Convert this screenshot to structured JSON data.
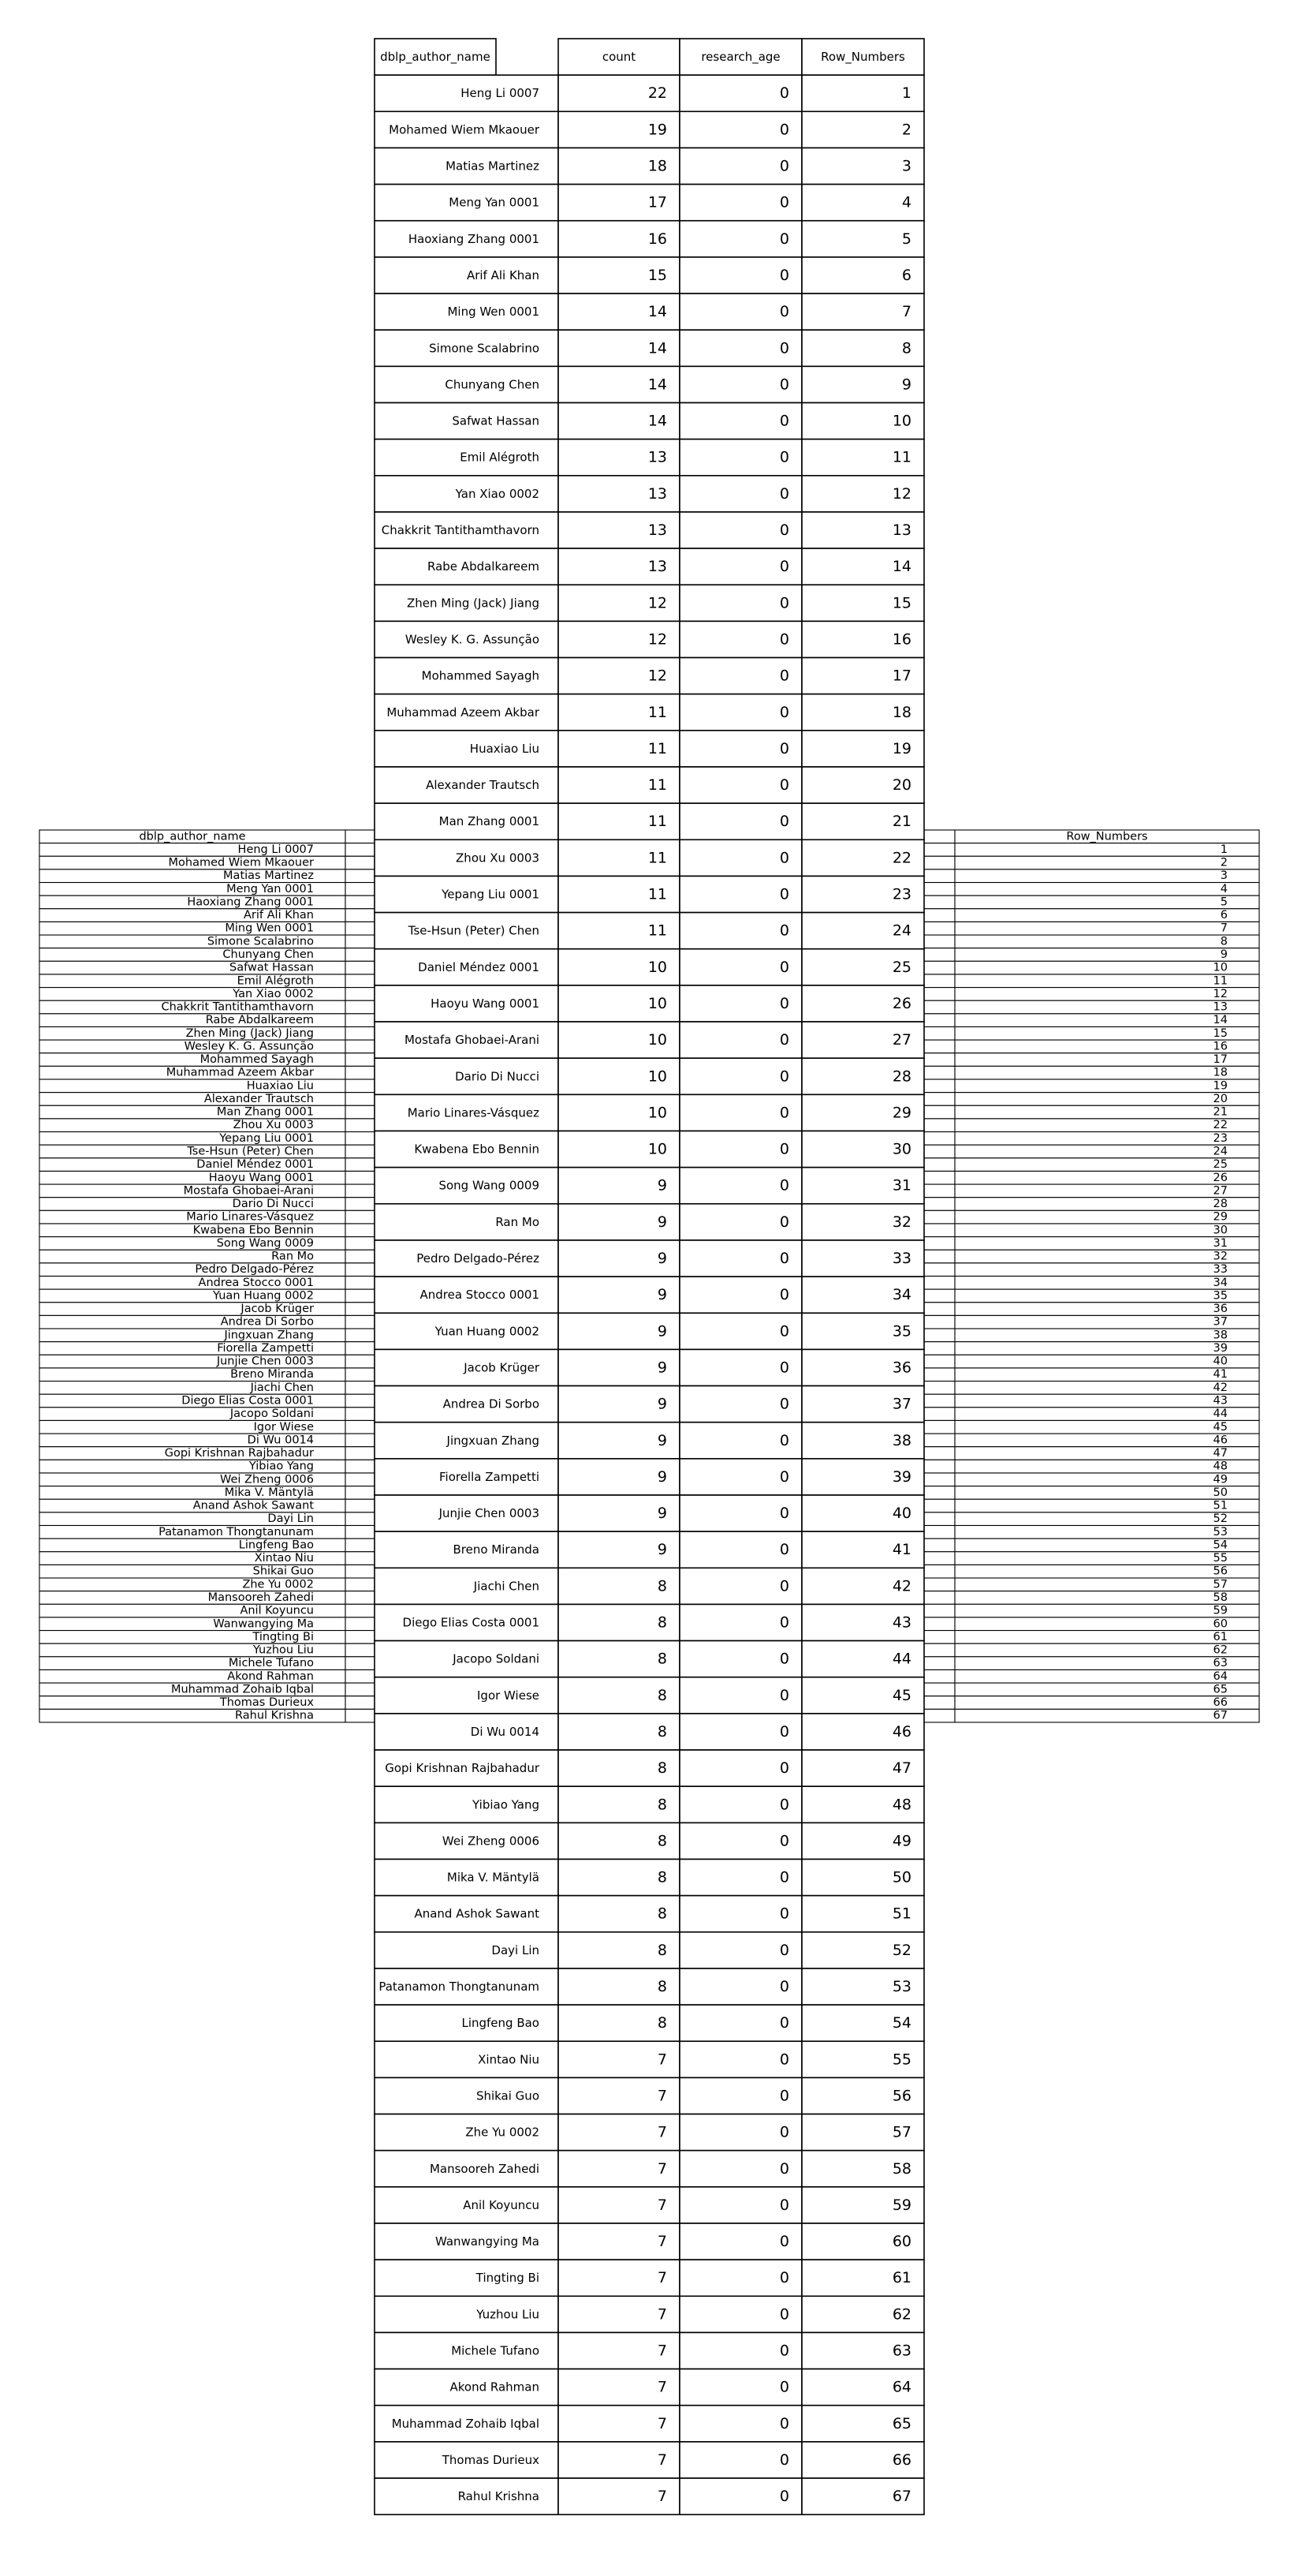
{
  "chart_data": [
    {
      "type": "table",
      "columns": [
        "dblp_author_name",
        "count",
        "research_age",
        "Row_Numbers"
      ],
      "rows": [
        [
          "Heng Li 0007",
          22,
          0,
          1
        ],
        [
          "Mohamed Wiem Mkaouer",
          19,
          0,
          2
        ],
        [
          "Matias Martinez",
          18,
          0,
          3
        ],
        [
          "Meng Yan 0001",
          17,
          0,
          4
        ],
        [
          "Haoxiang Zhang 0001",
          16,
          0,
          5
        ],
        [
          "Arif Ali Khan",
          15,
          0,
          6
        ],
        [
          "Ming Wen 0001",
          14,
          0,
          7
        ],
        [
          "Simone Scalabrino",
          14,
          0,
          8
        ],
        [
          "Chunyang Chen",
          14,
          0,
          9
        ],
        [
          "Safwat Hassan",
          14,
          0,
          10
        ],
        [
          "Emil Alégroth",
          13,
          0,
          11
        ],
        [
          "Yan Xiao 0002",
          13,
          0,
          12
        ],
        [
          "Chakkrit Tantithamthavorn",
          13,
          0,
          13
        ],
        [
          "Rabe Abdalkareem",
          13,
          0,
          14
        ],
        [
          "Zhen Ming (Jack) Jiang",
          12,
          0,
          15
        ],
        [
          "Wesley K. G. Assunção",
          12,
          0,
          16
        ],
        [
          "Mohammed Sayagh",
          12,
          0,
          17
        ],
        [
          "Muhammad Azeem Akbar",
          11,
          0,
          18
        ],
        [
          "Huaxiao Liu",
          11,
          0,
          19
        ],
        [
          "Alexander Trautsch",
          11,
          0,
          20
        ],
        [
          "Man Zhang 0001",
          11,
          0,
          21
        ],
        [
          "Zhou Xu 0003",
          11,
          0,
          22
        ],
        [
          "Yepang Liu 0001",
          11,
          0,
          23
        ],
        [
          "Tse-Hsun (Peter) Chen",
          11,
          0,
          24
        ],
        [
          "Daniel Méndez 0001",
          10,
          0,
          25
        ],
        [
          "Haoyu Wang 0001",
          10,
          0,
          26
        ],
        [
          "Mostafa Ghobaei-Arani",
          10,
          0,
          27
        ],
        [
          "Dario Di Nucci",
          10,
          0,
          28
        ],
        [
          "Mario Linares-Vásquez",
          10,
          0,
          29
        ],
        [
          "Kwabena Ebo Bennin",
          10,
          0,
          30
        ],
        [
          "Song Wang 0009",
          9,
          0,
          31
        ],
        [
          "Ran Mo",
          9,
          0,
          32
        ],
        [
          "Pedro Delgado-Pérez",
          9,
          0,
          33
        ],
        [
          "Andrea Stocco 0001",
          9,
          0,
          34
        ],
        [
          "Yuan Huang 0002",
          9,
          0,
          35
        ],
        [
          "Jacob Krüger",
          9,
          0,
          36
        ],
        [
          "Andrea Di Sorbo",
          9,
          0,
          37
        ],
        [
          "Jingxuan Zhang",
          9,
          0,
          38
        ],
        [
          "Fiorella Zampetti",
          9,
          0,
          39
        ],
        [
          "Junjie Chen 0003",
          9,
          0,
          40
        ],
        [
          "Breno Miranda",
          9,
          0,
          41
        ],
        [
          "Jiachi Chen",
          8,
          0,
          42
        ],
        [
          "Diego Elias Costa 0001",
          8,
          0,
          43
        ],
        [
          "Jacopo Soldani",
          8,
          0,
          44
        ],
        [
          "Igor Wiese",
          8,
          0,
          45
        ],
        [
          "Di Wu 0014",
          8,
          0,
          46
        ],
        [
          "Gopi Krishnan Rajbahadur",
          8,
          0,
          47
        ],
        [
          "Yibiao Yang",
          8,
          0,
          48
        ],
        [
          "Wei Zheng 0006",
          8,
          0,
          49
        ],
        [
          "Mika V. Mäntylä",
          8,
          0,
          50
        ],
        [
          "Anand Ashok Sawant",
          8,
          0,
          51
        ],
        [
          "Dayi Lin",
          8,
          0,
          52
        ],
        [
          "Patanamon Thongtanunam",
          8,
          0,
          53
        ],
        [
          "Lingfeng Bao",
          8,
          0,
          54
        ],
        [
          "Xintao Niu",
          7,
          0,
          55
        ],
        [
          "Shikai Guo",
          7,
          0,
          56
        ],
        [
          "Zhe Yu 0002",
          7,
          0,
          57
        ],
        [
          "Mansooreh Zahedi",
          7,
          0,
          58
        ],
        [
          "Anil Koyuncu",
          7,
          0,
          59
        ],
        [
          "Wanwangying Ma",
          7,
          0,
          60
        ],
        [
          "Tingting Bi",
          7,
          0,
          61
        ],
        [
          "Yuzhou Liu",
          7,
          0,
          62
        ],
        [
          "Michele Tufano",
          7,
          0,
          63
        ],
        [
          "Akond Rahman",
          7,
          0,
          64
        ],
        [
          "Muhammad Zohaib Iqbal",
          7,
          0,
          65
        ],
        [
          "Thomas Durieux",
          7,
          0,
          66
        ],
        [
          "Rahul Krishna",
          7,
          0,
          67
        ]
      ]
    },
    {
      "type": "table",
      "columns": [
        "dblp_author_name",
        "Row_Numbers"
      ],
      "rows_from": "same author names and row numbers as the main table"
    }
  ]
}
